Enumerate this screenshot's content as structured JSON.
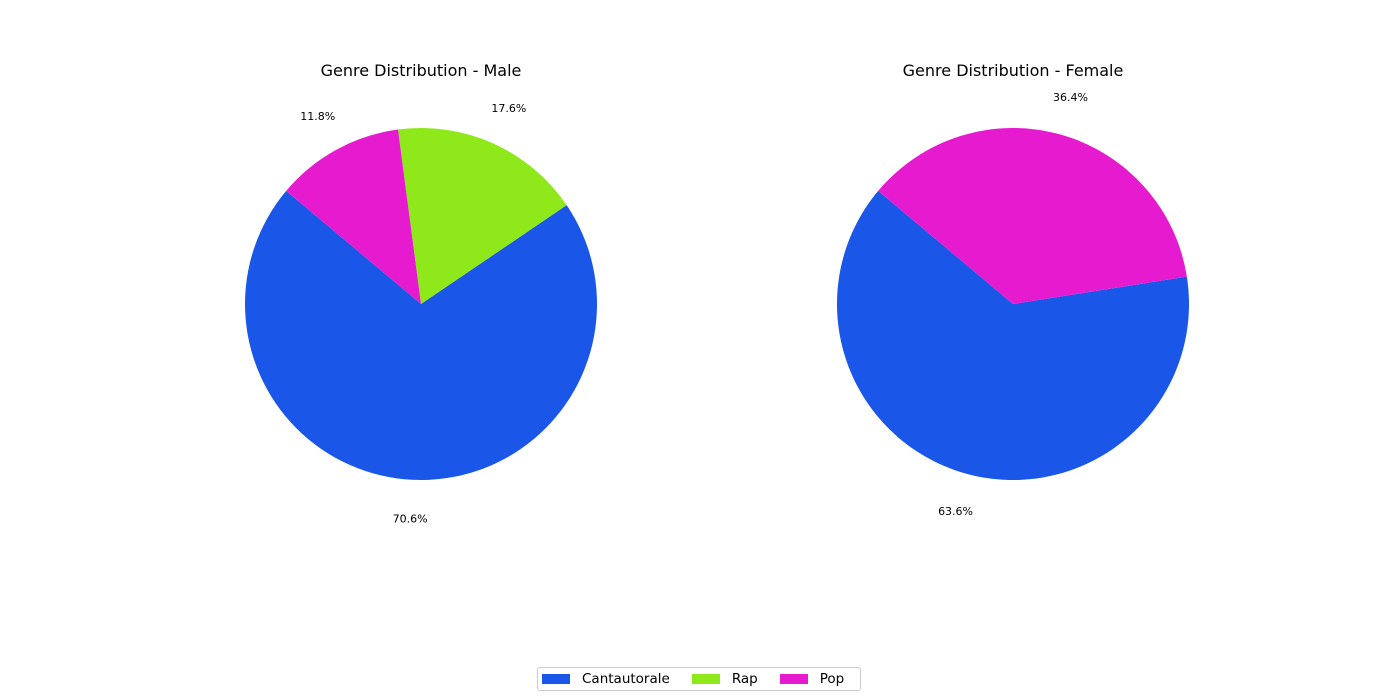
{
  "chart_data": [
    {
      "type": "pie",
      "title": "Genre Distribution - Male",
      "categories": [
        "Cantautorale",
        "Rap",
        "Pop"
      ],
      "values": [
        70.6,
        17.6,
        11.8
      ],
      "labels": [
        "70.6%",
        "17.6%",
        "11.8%"
      ],
      "colors": [
        "#1a56e8",
        "#8ee81a",
        "#e61acf"
      ]
    },
    {
      "type": "pie",
      "title": "Genre Distribution - Female",
      "categories": [
        "Cantautorale",
        "Rap",
        "Pop"
      ],
      "values": [
        63.6,
        0,
        36.4
      ],
      "labels": [
        "63.6%",
        "",
        "36.4%"
      ],
      "colors": [
        "#1a56e8",
        "#8ee81a",
        "#e61acf"
      ]
    }
  ],
  "legend": {
    "placement": "bottom-center",
    "items": [
      {
        "label": "Cantautorale",
        "color": "#1a56e8"
      },
      {
        "label": "Rap",
        "color": "#8ee81a"
      },
      {
        "label": "Pop",
        "color": "#e61acf"
      }
    ]
  }
}
